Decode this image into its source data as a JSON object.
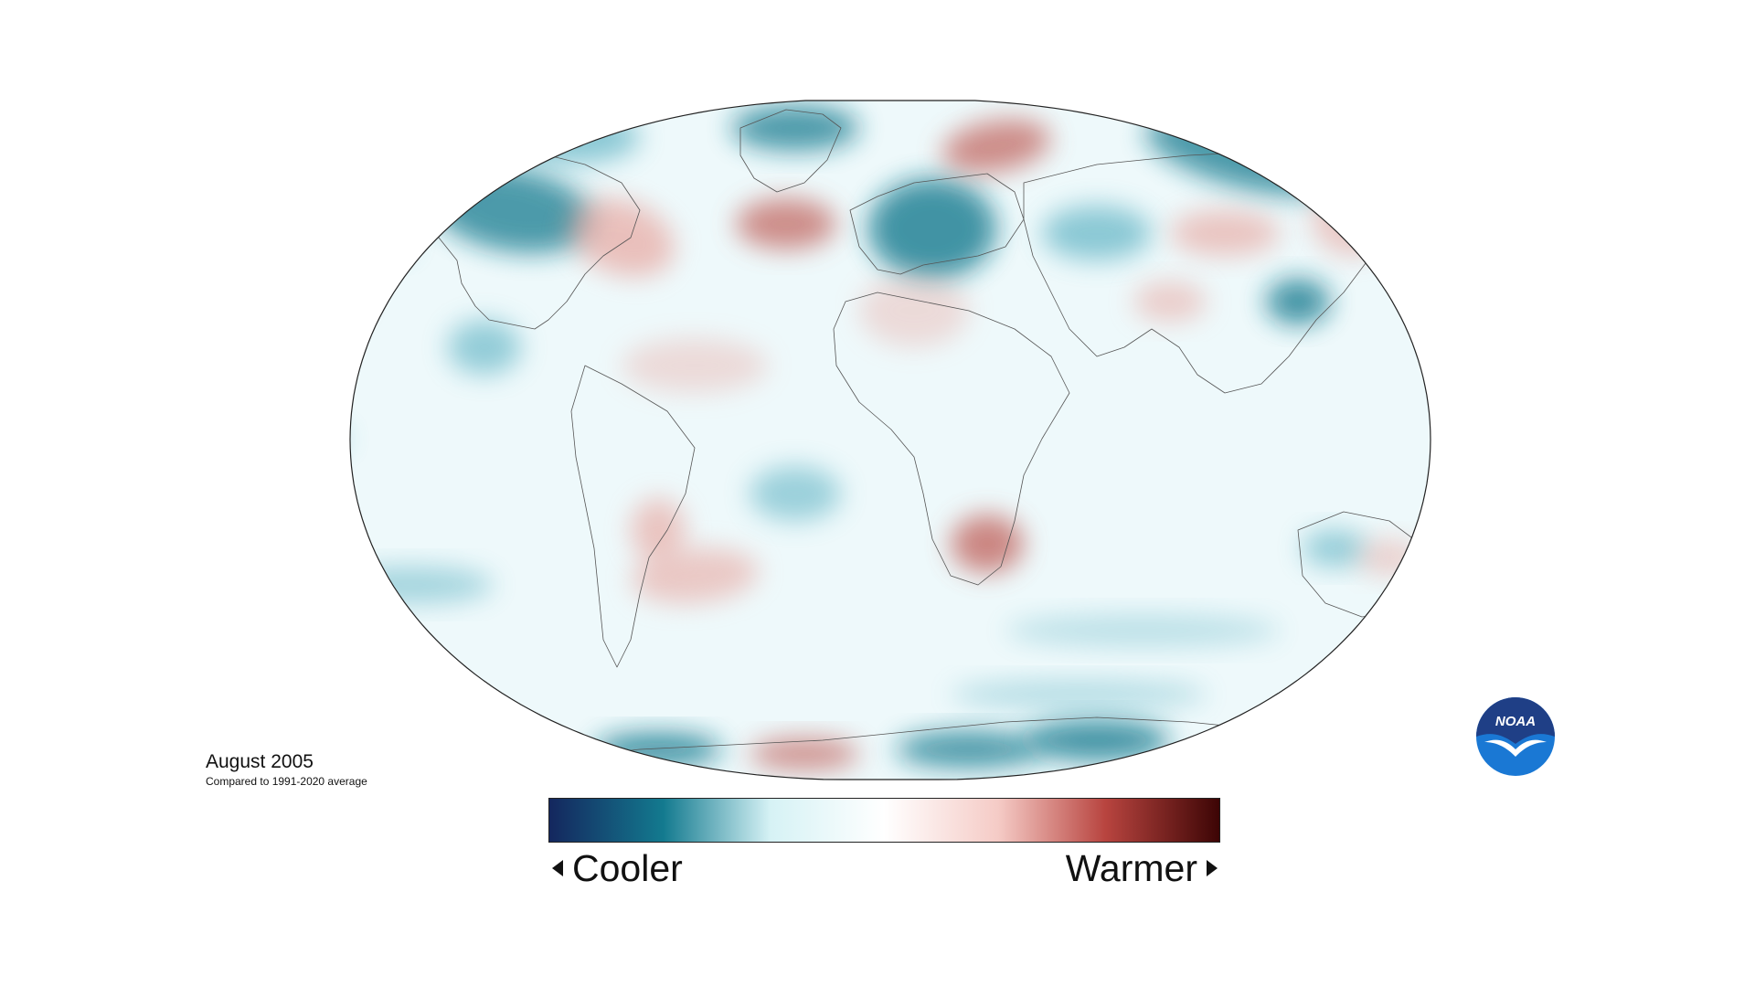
{
  "caption": {
    "title": "August 2005",
    "subtitle": "Compared to 1991-2020 average"
  },
  "legend": {
    "cool_label": "Cooler",
    "warm_label": "Warmer",
    "gradient_colors": [
      "#14275e",
      "#137a8f",
      "#d6f2f5",
      "#ffffff",
      "#f5cbc6",
      "#b8443f",
      "#3d0505"
    ]
  },
  "logo": {
    "text": "NOAA",
    "top_color": "#1f3f86",
    "bottom_color": "#1a78d4"
  },
  "map": {
    "projection": "robinson",
    "ocean_base_color": "#eef9fb",
    "anomaly_colors": {
      "cool": "#4aa8bb",
      "cool_strong": "#137a8f",
      "warm": "#e7a19a",
      "warm_strong": "#c0605a"
    }
  }
}
